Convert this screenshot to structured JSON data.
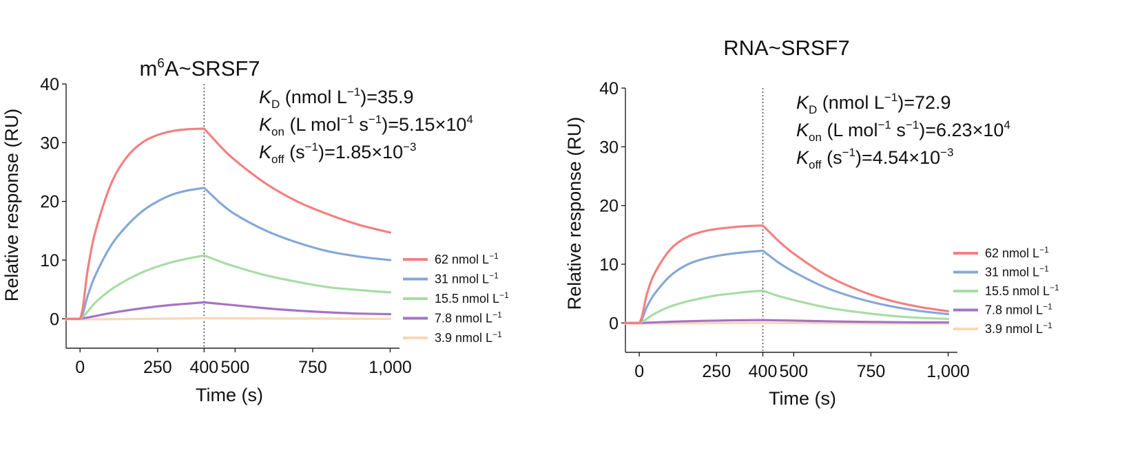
{
  "chart_data": [
    {
      "type": "line",
      "title_prefix": "m",
      "title_superscript": "6",
      "title_suffix": "A~SRSF7",
      "xlabel": "Time (s)",
      "ylabel": "Relative response (RU)",
      "xlim": [
        -45,
        1030
      ],
      "ylim": [
        -5,
        40
      ],
      "xticks": [
        0,
        250,
        400,
        500,
        750,
        1000
      ],
      "xtick_labels": [
        "0",
        "250",
        "400",
        "500",
        "750",
        "1,000"
      ],
      "yticks": [
        0,
        10,
        20,
        30,
        40
      ],
      "ytick_labels": [
        "0",
        "10",
        "20",
        "30",
        "40"
      ],
      "vline_x": 400,
      "grid": false,
      "legend_position": "right",
      "kinetics": [
        {
          "symbol": "K",
          "sub": "D",
          "unit_prefix": " (nmol L",
          "unit_sup1": "−1",
          "unit_mid": "",
          "unit_sup2": "",
          "close": ")=",
          "value": "35.9",
          "value_sup": ""
        },
        {
          "symbol": "K",
          "sub": "on",
          "unit_prefix": " (L mol",
          "unit_sup1": "−1",
          "unit_mid": " s",
          "unit_sup2": "−1",
          "close": ")=",
          "value": "5.15×10",
          "value_sup": "4"
        },
        {
          "symbol": "K",
          "sub": "off",
          "unit_prefix": " (s",
          "unit_sup1": "−1",
          "unit_mid": "",
          "unit_sup2": "",
          "close": ")=",
          "value": "1.85×10",
          "value_sup": "−3"
        }
      ],
      "series": [
        {
          "name": "62 nmol L",
          "name_sup": "−1",
          "color": "#f47f81",
          "x": [
            -45,
            0,
            25,
            50,
            100,
            150,
            200,
            250,
            300,
            350,
            400,
            450,
            500,
            600,
            700,
            800,
            900,
            1000
          ],
          "y": [
            0,
            0,
            8.5,
            15,
            23,
            27.5,
            30,
            31.3,
            32,
            32.3,
            32.4,
            29.5,
            27,
            23,
            20,
            17.8,
            16,
            14.7
          ]
        },
        {
          "name": "31 nmol L",
          "name_sup": "−1",
          "color": "#86a8d6",
          "x": [
            -45,
            0,
            25,
            50,
            100,
            150,
            200,
            250,
            300,
            350,
            400,
            450,
            500,
            600,
            700,
            800,
            900,
            1000
          ],
          "y": [
            0,
            0,
            4,
            7.5,
            12.5,
            15.8,
            18.3,
            20,
            21.2,
            21.9,
            22.3,
            19.8,
            17.8,
            15,
            13,
            11.5,
            10.6,
            10
          ]
        },
        {
          "name": "15.5 nmol L",
          "name_sup": "−1",
          "color": "#a8dca4",
          "x": [
            -45,
            0,
            50,
            100,
            150,
            200,
            250,
            300,
            350,
            400,
            450,
            500,
            600,
            700,
            800,
            900,
            1000
          ],
          "y": [
            0,
            0,
            2.8,
            5,
            6.6,
            7.9,
            8.9,
            9.7,
            10.3,
            10.8,
            9.8,
            8.9,
            7.4,
            6.3,
            5.4,
            4.9,
            4.5
          ]
        },
        {
          "name": "7.8 nmol L",
          "name_sup": "−1",
          "color": "#a573c6",
          "x": [
            -45,
            0,
            100,
            200,
            300,
            400,
            500,
            600,
            700,
            800,
            900,
            1000
          ],
          "y": [
            0,
            0,
            1,
            1.8,
            2.4,
            2.8,
            2.3,
            1.8,
            1.4,
            1.1,
            0.9,
            0.8
          ]
        },
        {
          "name": "3.9 nmol L",
          "name_sup": "−1",
          "color": "#fad7b5",
          "x": [
            -45,
            0,
            400,
            1000
          ],
          "y": [
            -0.1,
            -0.1,
            0.1,
            0.0
          ]
        }
      ]
    },
    {
      "type": "line",
      "title_prefix": "RNA~SRSF7",
      "title_superscript": "",
      "title_suffix": "",
      "xlabel": "Time (s)",
      "ylabel": "Relative response (RU)",
      "xlim": [
        -45,
        1030
      ],
      "ylim": [
        -5,
        40
      ],
      "xticks": [
        0,
        250,
        400,
        500,
        750,
        1000
      ],
      "xtick_labels": [
        "0",
        "250",
        "400",
        "500",
        "750",
        "1,000"
      ],
      "yticks": [
        0,
        10,
        20,
        30,
        40
      ],
      "ytick_labels": [
        "0",
        "10",
        "20",
        "30",
        "40"
      ],
      "vline_x": 400,
      "grid": false,
      "legend_position": "right",
      "kinetics": [
        {
          "symbol": "K",
          "sub": "D",
          "unit_prefix": " (nmol L",
          "unit_sup1": "−1",
          "unit_mid": "",
          "unit_sup2": "",
          "close": ")=",
          "value": "72.9",
          "value_sup": ""
        },
        {
          "symbol": "K",
          "sub": "on",
          "unit_prefix": " (L mol",
          "unit_sup1": "−1",
          "unit_mid": " s",
          "unit_sup2": "−1",
          "close": ")=",
          "value": "6.23×10",
          "value_sup": "4"
        },
        {
          "symbol": "K",
          "sub": "off",
          "unit_prefix": " (s",
          "unit_sup1": "−1",
          "unit_mid": "",
          "unit_sup2": "",
          "close": ")=",
          "value": "4.54×10",
          "value_sup": "−3"
        }
      ],
      "series": [
        {
          "name": "62 nmol L",
          "name_sup": "−1",
          "color": "#f47f81",
          "x": [
            -45,
            0,
            25,
            50,
            100,
            150,
            200,
            250,
            300,
            350,
            400,
            450,
            500,
            600,
            700,
            800,
            900,
            1000
          ],
          "y": [
            0,
            0,
            5,
            8.5,
            12.5,
            14.5,
            15.5,
            16,
            16.3,
            16.5,
            16.6,
            14,
            11.8,
            8.3,
            5.8,
            4,
            2.8,
            2
          ]
        },
        {
          "name": "31 nmol L",
          "name_sup": "−1",
          "color": "#86a8d6",
          "x": [
            -45,
            0,
            25,
            50,
            100,
            150,
            200,
            250,
            300,
            350,
            400,
            450,
            500,
            600,
            700,
            800,
            900,
            1000
          ],
          "y": [
            0,
            0,
            2.8,
            5,
            8,
            9.8,
            10.8,
            11.4,
            11.8,
            12.1,
            12.3,
            10.3,
            8.7,
            6.1,
            4.3,
            3,
            2.1,
            1.5
          ]
        },
        {
          "name": "15.5 nmol L",
          "name_sup": "−1",
          "color": "#a8dca4",
          "x": [
            -45,
            0,
            50,
            100,
            150,
            200,
            250,
            300,
            350,
            400,
            450,
            500,
            600,
            700,
            800,
            900,
            1000
          ],
          "y": [
            0,
            0,
            1.6,
            2.8,
            3.6,
            4.2,
            4.7,
            5,
            5.3,
            5.5,
            4.6,
            3.9,
            2.7,
            1.9,
            1.3,
            0.9,
            0.7
          ]
        },
        {
          "name": "7.8 nmol L",
          "name_sup": "−1",
          "color": "#a573c6",
          "x": [
            -45,
            0,
            100,
            200,
            300,
            400,
            500,
            600,
            700,
            800,
            900,
            1000
          ],
          "y": [
            0,
            0,
            0.2,
            0.35,
            0.45,
            0.5,
            0.4,
            0.3,
            0.2,
            0.15,
            0.1,
            0.1
          ]
        },
        {
          "name": "3.9 nmol L",
          "name_sup": "−1",
          "color": "#fad7b5",
          "x": [
            -45,
            0,
            400,
            1000
          ],
          "y": [
            -0.1,
            -0.1,
            0.0,
            -0.1
          ]
        }
      ]
    }
  ]
}
